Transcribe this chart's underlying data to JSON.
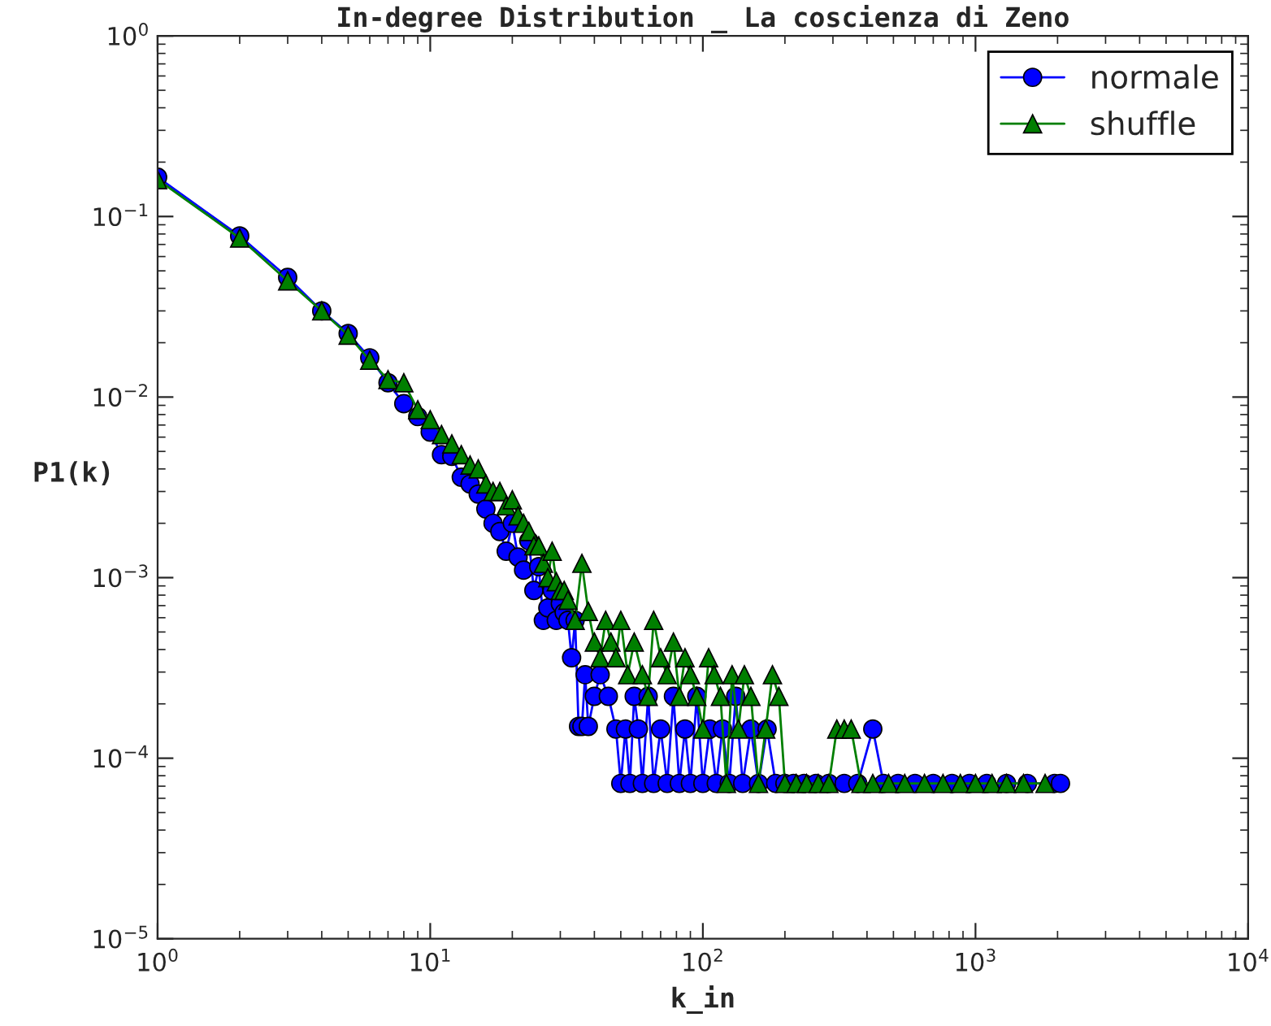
{
  "chart_data": {
    "type": "line",
    "title": "In-degree Distribution _ La coscienza di Zeno",
    "xlabel": "k_in",
    "ylabel": "P1(k)",
    "log": "xy",
    "grid": false,
    "legend": "top right",
    "xlim": [
      1,
      10000
    ],
    "ylim": [
      1e-05,
      1
    ],
    "xticks": [
      {
        "value": 1,
        "label": "10$^{0}$"
      },
      {
        "value": 10,
        "label": "10$^{1}$"
      },
      {
        "value": 100,
        "label": "10$^{2}$"
      },
      {
        "value": 1000,
        "label": "10$^{3}$"
      },
      {
        "value": 10000,
        "label": "10$^{4}$"
      }
    ],
    "yticks": [
      {
        "value": 1e-05,
        "label": "10$^{−5}$"
      },
      {
        "value": 0.0001,
        "label": "10$^{−4}$"
      },
      {
        "value": 0.001,
        "label": "10$^{−3}$"
      },
      {
        "value": 0.01,
        "label": "10$^{−2}$"
      },
      {
        "value": 0.1,
        "label": "10$^{−1}$"
      },
      {
        "value": 1,
        "label": "10$^{0}$"
      }
    ],
    "series": [
      {
        "name": "normale",
        "color": "#0000ff",
        "marker": "circle",
        "x": [
          1,
          2,
          3,
          4,
          5,
          6,
          7,
          8,
          9,
          10,
          11,
          12,
          13,
          14,
          15,
          16,
          17,
          18,
          19,
          20,
          21,
          22,
          23,
          24,
          25,
          26,
          27,
          28,
          29,
          30,
          31,
          32,
          33,
          34,
          35,
          36,
          37,
          38,
          40,
          42,
          45,
          48,
          50,
          52,
          54,
          56,
          58,
          60,
          63,
          66,
          70,
          74,
          78,
          82,
          86,
          90,
          95,
          100,
          106,
          112,
          118,
          125,
          132,
          140,
          150,
          160,
          172,
          185,
          200,
          215,
          235,
          260,
          290,
          330,
          370,
          420,
          460,
          520,
          600,
          700,
          820,
          950,
          1100,
          1300,
          1550,
          1950,
          2050
        ],
        "values": [
          0.165,
          0.078,
          0.046,
          0.03,
          0.0225,
          0.0165,
          0.012,
          0.0092,
          0.0078,
          0.0064,
          0.0048,
          0.0047,
          0.0036,
          0.0033,
          0.0029,
          0.0024,
          0.002,
          0.0018,
          0.0014,
          0.002,
          0.0013,
          0.0011,
          0.0016,
          0.00085,
          0.00115,
          0.00058,
          0.00068,
          0.00085,
          0.00058,
          0.00072,
          0.00064,
          0.00058,
          0.00036,
          0.00058,
          0.00015,
          0.00015,
          0.00029,
          0.00015,
          0.00022,
          0.00029,
          0.00022,
          0.000145,
          7.25e-05,
          0.000145,
          7.25e-05,
          0.00022,
          0.000145,
          7.25e-05,
          0.00022,
          7.25e-05,
          0.000145,
          7.25e-05,
          0.00022,
          7.25e-05,
          0.000145,
          7.25e-05,
          0.00022,
          7.25e-05,
          0.000145,
          7.25e-05,
          0.000145,
          7.25e-05,
          0.00022,
          7.25e-05,
          0.000145,
          7.25e-05,
          0.000145,
          7.25e-05,
          7.25e-05,
          7.25e-05,
          7.25e-05,
          7.25e-05,
          7.25e-05,
          7.25e-05,
          7.25e-05,
          0.000145,
          7.25e-05,
          7.25e-05,
          7.25e-05,
          7.25e-05,
          7.25e-05,
          7.25e-05,
          7.25e-05,
          7.25e-05,
          7.25e-05,
          7.25e-05,
          7.25e-05
        ]
      },
      {
        "name": "shuffle",
        "color": "#007f00",
        "marker": "triangle",
        "x": [
          1,
          2,
          3,
          4,
          5,
          6,
          7,
          8,
          9,
          10,
          11,
          12,
          13,
          14,
          15,
          16,
          17,
          18,
          19,
          20,
          21,
          22,
          23,
          24,
          25,
          26,
          27,
          28,
          29,
          30,
          31,
          32,
          34,
          36,
          38,
          40,
          42,
          44,
          46,
          48,
          50,
          53,
          56,
          60,
          63,
          66,
          70,
          74,
          78,
          82,
          86,
          90,
          95,
          100,
          105,
          110,
          116,
          122,
          128,
          135,
          142,
          150,
          160,
          170,
          180,
          190,
          200,
          220,
          240,
          265,
          290,
          310,
          330,
          350,
          380,
          420,
          480,
          550,
          650,
          760,
          880,
          1000,
          1150,
          1300,
          1500,
          1800
        ],
        "values": [
          0.16,
          0.076,
          0.044,
          0.03,
          0.022,
          0.016,
          0.0125,
          0.012,
          0.0085,
          0.0075,
          0.0062,
          0.0055,
          0.0048,
          0.0042,
          0.004,
          0.0033,
          0.003,
          0.003,
          0.0025,
          0.0027,
          0.0022,
          0.002,
          0.0018,
          0.0015,
          0.0015,
          0.0012,
          0.001,
          0.0014,
          0.00095,
          0.00085,
          0.00085,
          0.00075,
          0.00058,
          0.0012,
          0.00065,
          0.00044,
          0.00036,
          0.00058,
          0.00044,
          0.00036,
          0.00058,
          0.00029,
          0.00044,
          0.00029,
          0.00022,
          0.00058,
          0.00036,
          0.00029,
          0.00044,
          0.00022,
          0.00036,
          0.00029,
          0.00022,
          0.000145,
          0.00036,
          0.00029,
          0.00022,
          7.25e-05,
          0.00029,
          0.000145,
          0.00029,
          0.00022,
          7.25e-05,
          0.000145,
          0.00029,
          0.00022,
          7.25e-05,
          7.25e-05,
          7.25e-05,
          7.25e-05,
          7.25e-05,
          0.000145,
          0.000145,
          0.000145,
          7.25e-05,
          7.25e-05,
          7.25e-05,
          7.25e-05,
          7.25e-05,
          7.25e-05,
          7.25e-05,
          7.25e-05,
          7.25e-05,
          7.25e-05,
          7.25e-05,
          7.25e-05
        ]
      }
    ]
  }
}
